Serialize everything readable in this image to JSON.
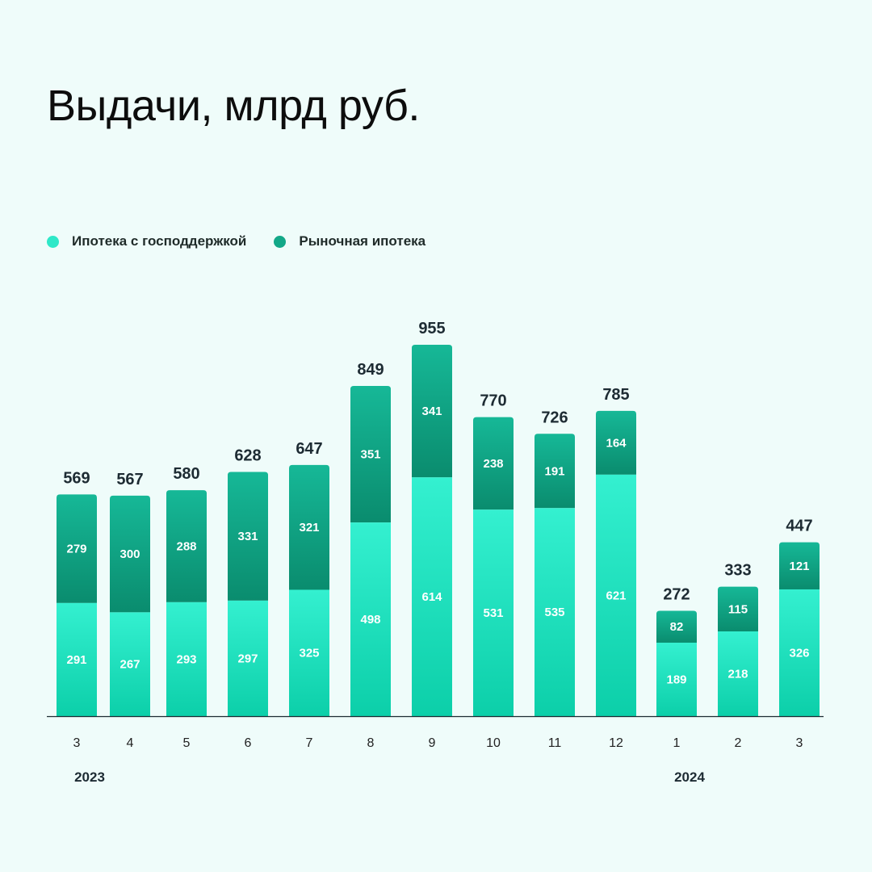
{
  "title": "Выдачи, млрд руб.",
  "legend": [
    {
      "label": "Ипотека с господдержкой",
      "color": "#2ee8c8"
    },
    {
      "label": "Рыночная ипотека",
      "color": "#13a888"
    }
  ],
  "colors": {
    "background": "#effcfa",
    "state_top": "#34f0d0",
    "state_bottom": "#0ccfa9",
    "market_top": "#16b897",
    "market_bottom": "#0a8c6e",
    "axis": "#1d2b33"
  },
  "chart_data": {
    "type": "bar",
    "stacked": true,
    "categories": [
      "3",
      "4",
      "5",
      "6",
      "7",
      "8",
      "9",
      "10",
      "11",
      "12",
      "1",
      "2",
      "3"
    ],
    "series": [
      {
        "name": "Ипотека с господдержкой",
        "values": [
          291,
          267,
          293,
          297,
          325,
          498,
          614,
          531,
          535,
          621,
          189,
          218,
          326
        ]
      },
      {
        "name": "Рыночная ипотека",
        "values": [
          279,
          300,
          288,
          331,
          321,
          351,
          341,
          238,
          191,
          164,
          82,
          115,
          121
        ]
      }
    ],
    "totals": [
      569,
      567,
      580,
      628,
      647,
      849,
      955,
      770,
      726,
      785,
      272,
      333,
      447
    ],
    "year_labels": [
      {
        "label": "2023",
        "category_index": 0
      },
      {
        "label": "2024",
        "category_index": 10
      }
    ],
    "legend_position": "top-left",
    "grid": false
  }
}
